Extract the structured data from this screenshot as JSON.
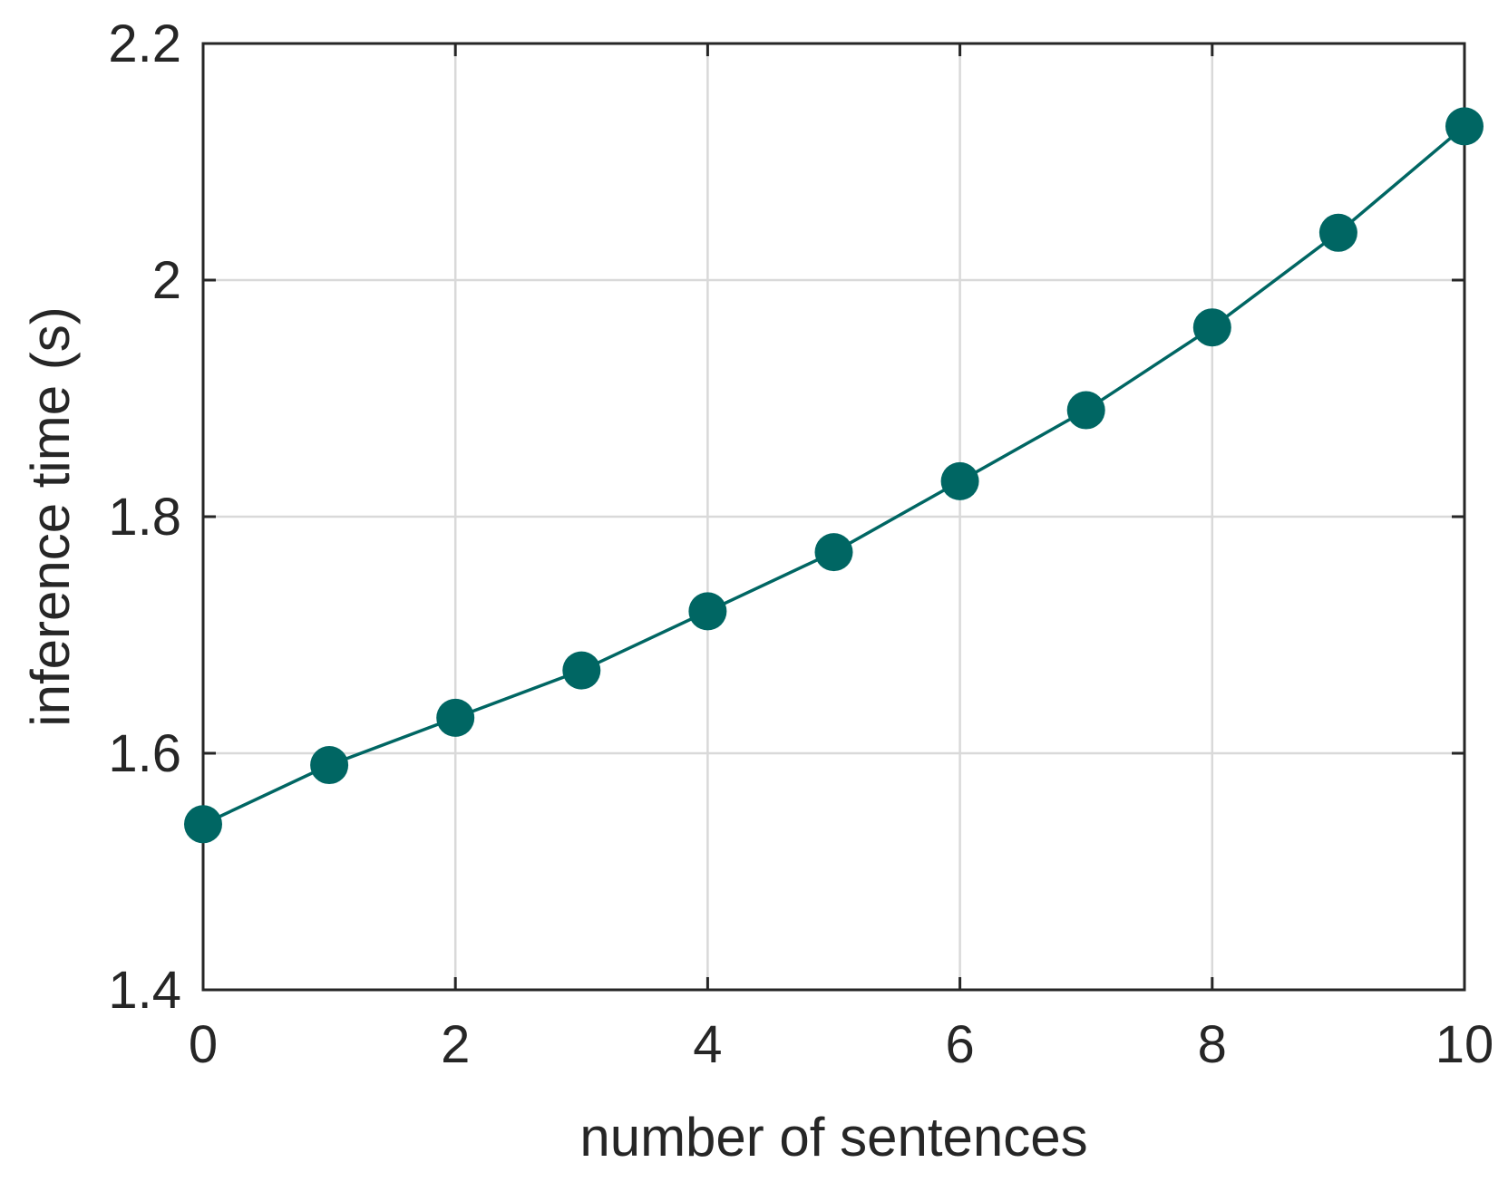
{
  "chart_data": {
    "type": "line",
    "title": "",
    "xlabel": "number of sentences",
    "ylabel": "inference time (s)",
    "xlim": [
      0,
      10
    ],
    "ylim": [
      1.4,
      2.2
    ],
    "xticks": [
      0,
      2,
      4,
      6,
      8,
      10
    ],
    "yticks": [
      1.4,
      1.6,
      1.8,
      2.0,
      2.2
    ],
    "xtick_labels": [
      "0",
      "2",
      "4",
      "6",
      "8",
      "10"
    ],
    "ytick_labels": [
      "1.4",
      "1.6",
      "1.8",
      "2",
      "2.2"
    ],
    "grid": true,
    "legend": "none",
    "series": [
      {
        "color": "#006663",
        "marker": "circle",
        "x": [
          0,
          1,
          2,
          3,
          4,
          5,
          6,
          7,
          8,
          9,
          10
        ],
        "y": [
          1.54,
          1.59,
          1.63,
          1.67,
          1.72,
          1.77,
          1.83,
          1.89,
          1.96,
          2.04,
          2.13
        ]
      }
    ]
  }
}
